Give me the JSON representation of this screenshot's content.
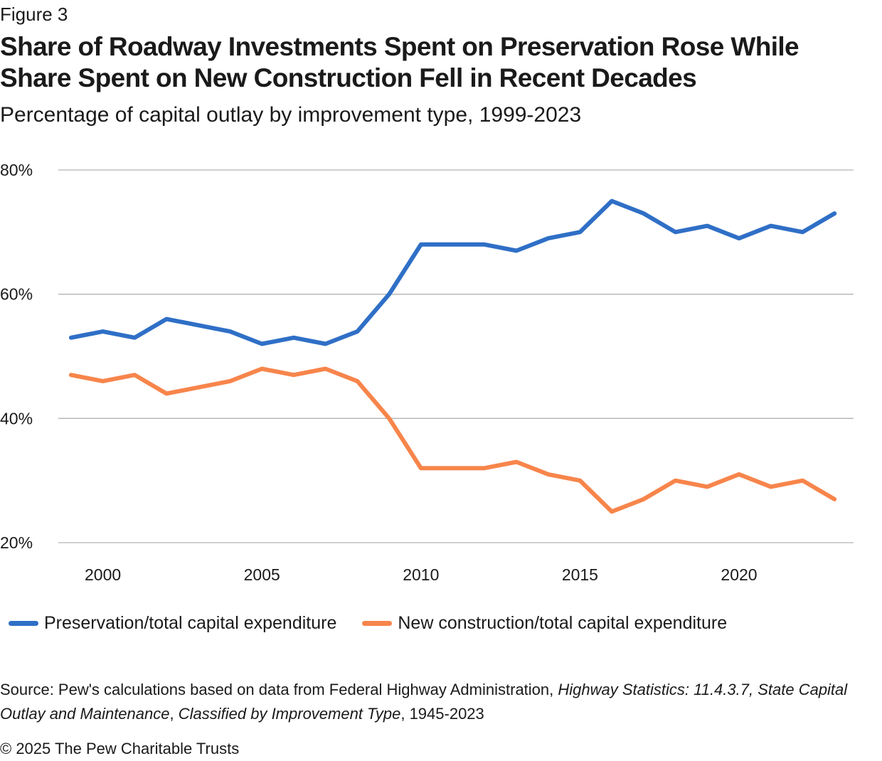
{
  "figure_label": "Figure 3",
  "title": "Share of Roadway Investments Spent on Preservation Rose While Share Spent on New Construction Fell in Recent Decades",
  "subtitle": "Percentage of capital outlay by improvement type, 1999-2023",
  "chart_data": {
    "type": "line",
    "x": [
      1999,
      2000,
      2001,
      2002,
      2003,
      2004,
      2005,
      2006,
      2007,
      2008,
      2009,
      2010,
      2011,
      2012,
      2013,
      2014,
      2015,
      2016,
      2017,
      2018,
      2019,
      2020,
      2021,
      2022,
      2023
    ],
    "series": [
      {
        "name": "Preservation/total capital expenditure",
        "color": "#2f6fc6",
        "values": [
          53,
          54,
          53,
          56,
          55,
          54,
          52,
          53,
          52,
          54,
          60,
          68,
          68,
          68,
          67,
          69,
          70,
          75,
          73,
          70,
          71,
          69,
          71,
          70,
          73
        ]
      },
      {
        "name": "New construction/total capital expenditure",
        "color": "#f7854b",
        "values": [
          47,
          46,
          47,
          44,
          45,
          46,
          48,
          47,
          48,
          46,
          40,
          32,
          32,
          32,
          33,
          31,
          30,
          25,
          27,
          30,
          29,
          31,
          29,
          30,
          27
        ]
      }
    ],
    "xticks": [
      "2000",
      "2005",
      "2010",
      "2015",
      "2020"
    ],
    "yticks": [
      "20%",
      "40%",
      "60%",
      "80%"
    ],
    "xlim": [
      1998.6,
      2023.6
    ],
    "ylim": [
      20,
      80
    ],
    "xlabel": "",
    "ylabel": "",
    "grid": "horizontal",
    "legend": "bottom-left"
  },
  "source": {
    "prefix": "Source: Pew's calculations based on data from Federal Highway Administration, ",
    "italic": "Highway Statistics: 11.4.3.7, State Capital Outlay and Maintenance",
    "sep": ", ",
    "italic2": "Classified by Improvement Type",
    "suffix": ", 1945-2023"
  },
  "copyright": "© 2025 The Pew Charitable Trusts"
}
